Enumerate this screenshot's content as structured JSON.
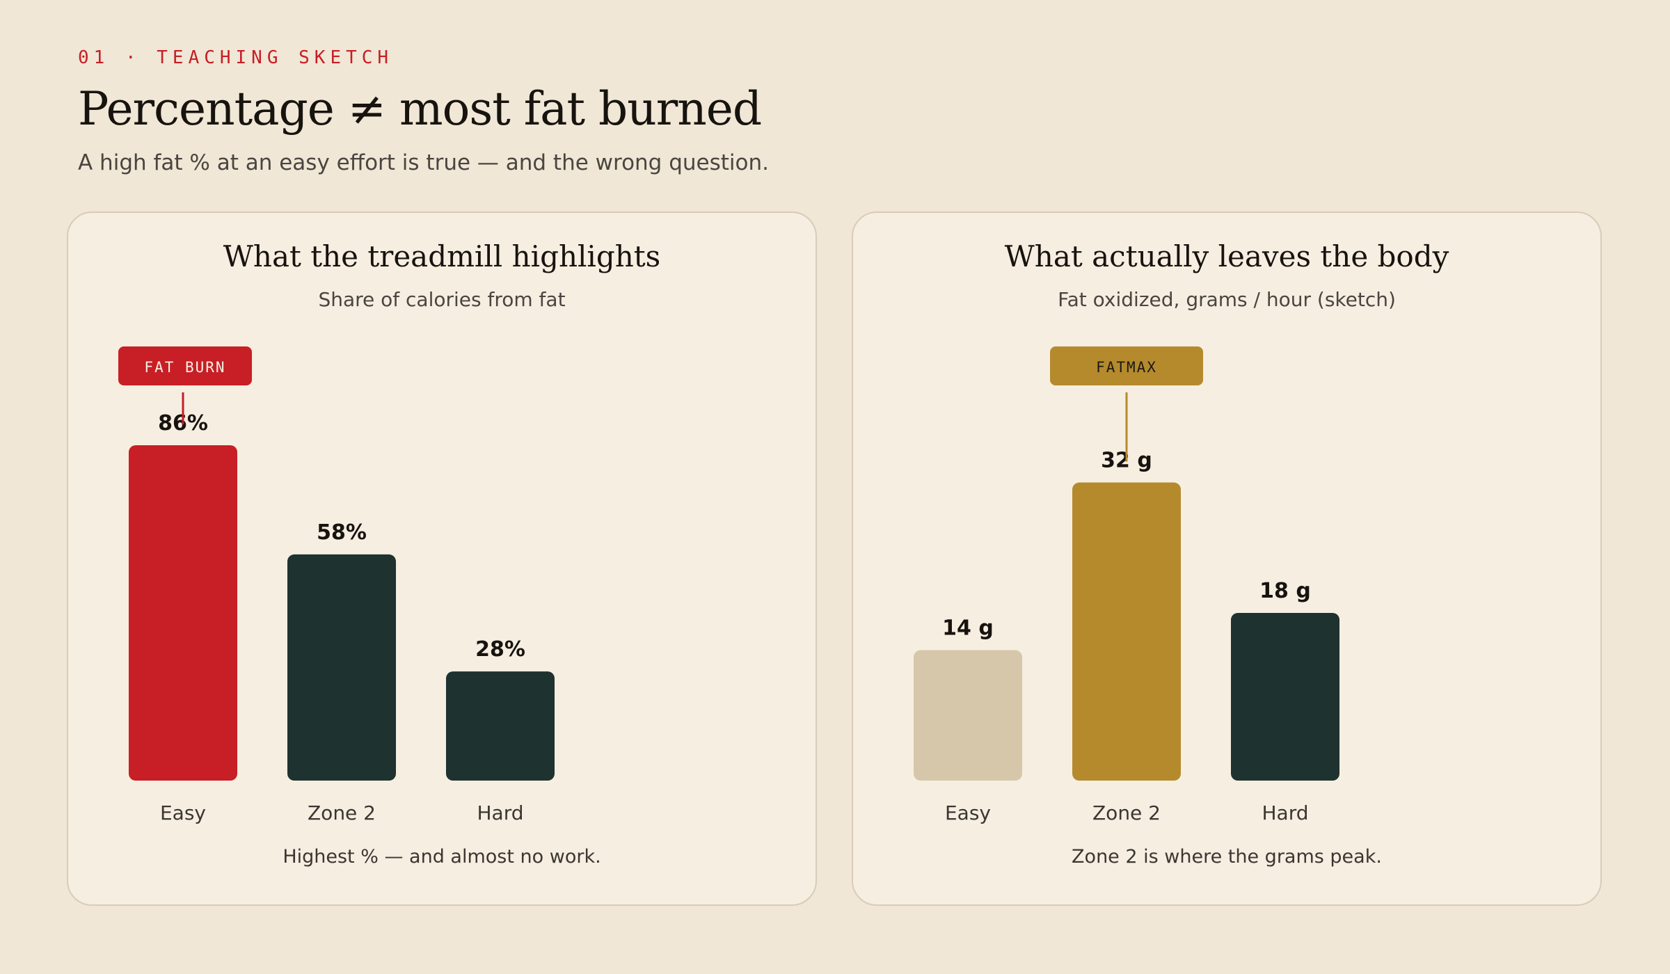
{
  "header": {
    "eyebrow": "01 · TEACHING SKETCH",
    "title": "Percentage ≠ most fat burned",
    "subtitle": "A high fat % at an easy effort is true — and the wrong question."
  },
  "colors": {
    "accent_red": "#c81e26",
    "accent_gold": "#b58a2d",
    "dark_green": "#1e3230",
    "sand": "#d6c7ab"
  },
  "chart_data": [
    {
      "type": "bar",
      "title": "What the treadmill highlights",
      "subtitle": "Share of calories from fat",
      "footnote": "Highest % — and almost no work.",
      "categories": [
        "Easy",
        "Zone 2",
        "Hard"
      ],
      "values": [
        86,
        58,
        28
      ],
      "value_labels": [
        "86%",
        "58%",
        "28%"
      ],
      "unit": "%",
      "ylim": [
        0,
        86
      ],
      "bar_colors": [
        "#c81e26",
        "#1e3230",
        "#1e3230"
      ],
      "annotation": {
        "label": "FAT BURN",
        "category": "Easy",
        "color": "#c81e26",
        "text_color": "#f6eee1"
      }
    },
    {
      "type": "bar",
      "title": "What actually leaves the body",
      "subtitle": "Fat oxidized, grams / hour (sketch)",
      "footnote": "Zone 2 is where the grams peak.",
      "categories": [
        "Easy",
        "Zone 2",
        "Hard"
      ],
      "values": [
        14,
        32,
        18
      ],
      "value_labels": [
        "14 g",
        "32 g",
        "18 g"
      ],
      "unit": "g",
      "ylim": [
        0,
        36
      ],
      "bar_colors": [
        "#d6c7ab",
        "#b58a2d",
        "#1e3230"
      ],
      "annotation": {
        "label": "FATMAX",
        "category": "Zone 2",
        "color": "#b58a2d",
        "text_color": "#1c1a17"
      }
    }
  ]
}
